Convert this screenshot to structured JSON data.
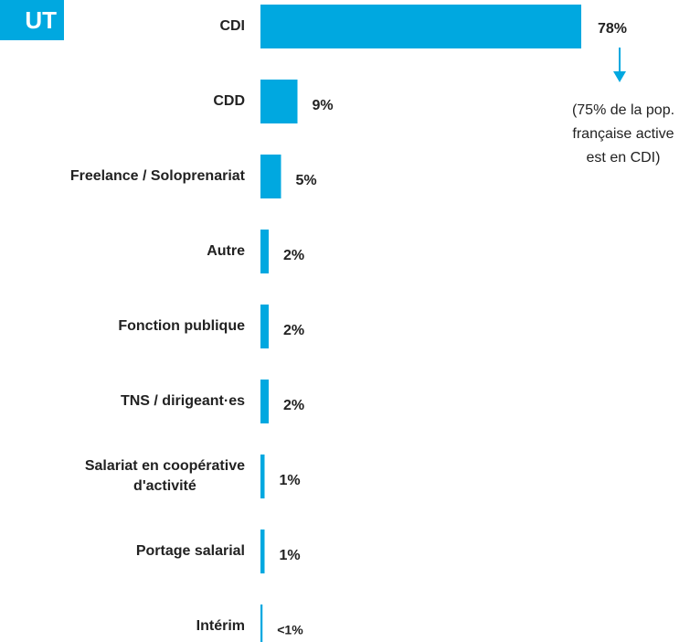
{
  "chart_data": {
    "type": "bar",
    "orientation": "horizontal",
    "title": "UT",
    "categories": [
      "CDI",
      "CDD",
      "Freelance / Soloprenariat",
      "Autre",
      "Fonction publique",
      "TNS / dirigeant·es",
      "Salariat en coopérative\nd'activité",
      "Portage salarial",
      "Intérim"
    ],
    "values": [
      78,
      9,
      5,
      2,
      2,
      2,
      1,
      1,
      0.5
    ],
    "value_labels": [
      "78%",
      "9%",
      "5%",
      "2%",
      "2%",
      "2%",
      "1%",
      "1%",
      "<1%"
    ],
    "color": "#00a8e0",
    "annotation": "(75% de la pop.\nfrançaise active\nest en CDI)"
  }
}
